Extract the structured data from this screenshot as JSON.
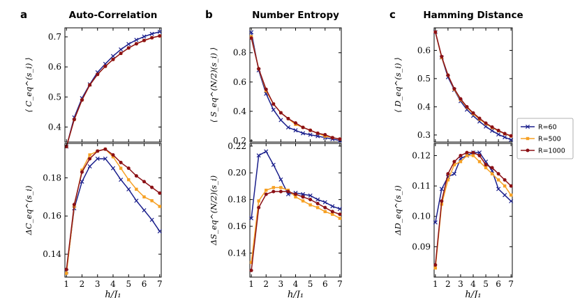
{
  "colors": {
    "r60": "#1a1f8c",
    "r500": "#f6a125",
    "r1000": "#8b1015"
  },
  "legend": {
    "items": [
      {
        "label": "R=60",
        "color": "#1a1f8c",
        "marker": "x"
      },
      {
        "label": "R=500",
        "color": "#f6a125",
        "marker": "square"
      },
      {
        "label": "R=1000",
        "color": "#8b1015",
        "marker": "circle"
      }
    ]
  },
  "panel_letters": [
    "a",
    "b",
    "c"
  ],
  "chart_data": [
    {
      "type": "line",
      "id": "a-top",
      "title": "Auto-Correlation",
      "ylabel": "⟨ C_eq^(s_i) ⟩",
      "xlabel": "",
      "x": [
        1,
        1.5,
        2,
        2.5,
        3,
        3.5,
        4,
        4.5,
        5,
        5.5,
        6,
        6.5,
        7
      ],
      "ylim": [
        0.35,
        0.73
      ],
      "yticks": [
        0.4,
        0.5,
        0.6,
        0.7
      ],
      "yticklabels": [
        "0.4",
        "0.5",
        "0.6",
        "0.7"
      ],
      "series": [
        {
          "name": "R=60",
          "values": [
            0.335,
            0.432,
            0.496,
            0.542,
            0.582,
            0.61,
            0.636,
            0.658,
            0.676,
            0.69,
            0.701,
            0.71,
            0.717
          ]
        },
        {
          "name": "R=500",
          "values": [
            0.335,
            0.425,
            0.49,
            0.54,
            0.575,
            0.602,
            0.625,
            0.645,
            0.663,
            0.677,
            0.688,
            0.697,
            0.703
          ]
        },
        {
          "name": "R=1000",
          "values": [
            0.335,
            0.425,
            0.49,
            0.54,
            0.575,
            0.602,
            0.625,
            0.645,
            0.663,
            0.677,
            0.688,
            0.697,
            0.703
          ]
        }
      ]
    },
    {
      "type": "line",
      "id": "a-bot",
      "title": "",
      "ylabel": "ΔC_eq^(s_i)",
      "xlabel": "h/J₁",
      "x": [
        1,
        1.5,
        2,
        2.5,
        3,
        3.5,
        4,
        4.5,
        5,
        5.5,
        6,
        6.5,
        7
      ],
      "ylim": [
        0.128,
        0.198
      ],
      "yticks": [
        0.14,
        0.16,
        0.18
      ],
      "yticklabels": [
        "0.14",
        "0.16",
        "0.18"
      ],
      "xticks": [
        1,
        2,
        3,
        4,
        5,
        6,
        7
      ],
      "xticklabels": [
        "1",
        "2",
        "3",
        "4",
        "5",
        "6",
        "7"
      ],
      "series": [
        {
          "name": "R=60",
          "values": [
            0.131,
            0.164,
            0.178,
            0.186,
            0.19,
            0.19,
            0.185,
            0.179,
            0.174,
            0.168,
            0.163,
            0.158,
            0.152
          ]
        },
        {
          "name": "R=500",
          "values": [
            0.13,
            0.165,
            0.184,
            0.192,
            0.194,
            0.195,
            0.191,
            0.185,
            0.179,
            0.174,
            0.17,
            0.168,
            0.165
          ]
        },
        {
          "name": "R=1000",
          "values": [
            0.132,
            0.166,
            0.183,
            0.19,
            0.194,
            0.195,
            0.192,
            0.188,
            0.185,
            0.181,
            0.178,
            0.175,
            0.172
          ]
        }
      ]
    },
    {
      "type": "line",
      "id": "b-top",
      "title": "Number Entropy",
      "ylabel": "⟨ S_eq^(N/2)(s_i) ⟩",
      "xlabel": "",
      "x": [
        1,
        1.5,
        2,
        2.5,
        3,
        3.5,
        4,
        4.5,
        5,
        5.5,
        6,
        6.5,
        7
      ],
      "ylim": [
        0.19,
        0.97
      ],
      "yticks": [
        0.2,
        0.4,
        0.6,
        0.8
      ],
      "yticklabels": [
        "0.2",
        "0.4",
        "0.6",
        "0.8"
      ],
      "series": [
        {
          "name": "R=60",
          "values": [
            0.94,
            0.68,
            0.52,
            0.41,
            0.34,
            0.29,
            0.27,
            0.25,
            0.24,
            0.23,
            0.22,
            0.21,
            0.2
          ]
        },
        {
          "name": "R=500",
          "values": [
            0.91,
            0.69,
            0.54,
            0.45,
            0.39,
            0.35,
            0.31,
            0.29,
            0.27,
            0.25,
            0.23,
            0.22,
            0.21
          ]
        },
        {
          "name": "R=1000",
          "values": [
            0.9,
            0.69,
            0.55,
            0.45,
            0.39,
            0.35,
            0.32,
            0.29,
            0.27,
            0.25,
            0.24,
            0.22,
            0.21
          ]
        }
      ]
    },
    {
      "type": "line",
      "id": "b-bot",
      "title": "",
      "ylabel": "ΔS_eq^(N/2)(s_i)",
      "xlabel": "h/J₁",
      "x": [
        1,
        1.5,
        2,
        2.5,
        3,
        3.5,
        4,
        4.5,
        5,
        5.5,
        6,
        6.5,
        7
      ],
      "ylim": [
        0.122,
        0.222
      ],
      "yticks": [
        0.14,
        0.16,
        0.18,
        0.2,
        0.22
      ],
      "yticklabels": [
        "0.14",
        "0.16",
        "0.18",
        "0.20",
        "0.22"
      ],
      "xticks": [
        1,
        2,
        3,
        4,
        5,
        6,
        7
      ],
      "xticklabels": [
        "1",
        "2",
        "3",
        "4",
        "5",
        "6",
        "7"
      ],
      "series": [
        {
          "name": "R=60",
          "values": [
            0.166,
            0.213,
            0.216,
            0.206,
            0.195,
            0.184,
            0.185,
            0.184,
            0.183,
            0.18,
            0.178,
            0.175,
            0.173
          ]
        },
        {
          "name": "R=500",
          "values": [
            0.133,
            0.179,
            0.187,
            0.189,
            0.189,
            0.187,
            0.182,
            0.179,
            0.176,
            0.174,
            0.171,
            0.169,
            0.166
          ]
        },
        {
          "name": "R=1000",
          "values": [
            0.127,
            0.174,
            0.184,
            0.186,
            0.186,
            0.186,
            0.184,
            0.182,
            0.18,
            0.177,
            0.174,
            0.171,
            0.169
          ]
        }
      ]
    },
    {
      "type": "line",
      "id": "c-top",
      "title": "Hamming Distance",
      "ylabel": "⟨ D_eq^(s_i) ⟩",
      "xlabel": "",
      "x": [
        1,
        1.5,
        2,
        2.5,
        3,
        3.5,
        4,
        4.5,
        5,
        5.5,
        6,
        6.5,
        7
      ],
      "ylim": [
        0.275,
        0.68
      ],
      "yticks": [
        0.3,
        0.4,
        0.5,
        0.6
      ],
      "yticklabels": [
        "0.3",
        "0.4",
        "0.5",
        "0.6"
      ],
      "series": [
        {
          "name": "R=60",
          "values": [
            0.665,
            0.575,
            0.505,
            0.46,
            0.42,
            0.39,
            0.368,
            0.348,
            0.33,
            0.315,
            0.302,
            0.292,
            0.283
          ]
        },
        {
          "name": "R=500",
          "values": [
            0.665,
            0.575,
            0.512,
            0.462,
            0.425,
            0.398,
            0.375,
            0.356,
            0.34,
            0.326,
            0.315,
            0.304,
            0.296
          ]
        },
        {
          "name": "R=1000",
          "values": [
            0.665,
            0.578,
            0.512,
            0.464,
            0.428,
            0.4,
            0.378,
            0.359,
            0.342,
            0.328,
            0.316,
            0.305,
            0.297
          ]
        }
      ]
    },
    {
      "type": "line",
      "id": "c-bot",
      "title": "",
      "ylabel": "ΔD_eq^(s_i)",
      "xlabel": "h/J₁",
      "x": [
        1,
        1.5,
        2,
        2.5,
        3,
        3.5,
        4,
        4.5,
        5,
        5.5,
        6,
        6.5,
        7
      ],
      "ylim": [
        0.08,
        0.124
      ],
      "yticks": [
        0.09,
        0.1,
        0.11,
        0.12
      ],
      "yticklabels": [
        "0.09",
        "0.10",
        "0.11",
        "0.12"
      ],
      "xticks": [
        1,
        2,
        3,
        4,
        5,
        6,
        7
      ],
      "xticklabels": [
        "1",
        "2",
        "3",
        "4",
        "5",
        "6",
        "7"
      ],
      "series": [
        {
          "name": "R=60",
          "values": [
            0.098,
            0.109,
            0.113,
            0.114,
            0.119,
            0.12,
            0.121,
            0.121,
            0.118,
            0.115,
            0.109,
            0.107,
            0.105
          ]
        },
        {
          "name": "R=500",
          "values": [
            0.083,
            0.104,
            0.112,
            0.117,
            0.118,
            0.12,
            0.12,
            0.118,
            0.116,
            0.114,
            0.112,
            0.11,
            0.107
          ]
        },
        {
          "name": "R=1000",
          "values": [
            0.084,
            0.105,
            0.114,
            0.118,
            0.12,
            0.121,
            0.121,
            0.12,
            0.117,
            0.116,
            0.114,
            0.112,
            0.11
          ]
        }
      ]
    }
  ]
}
